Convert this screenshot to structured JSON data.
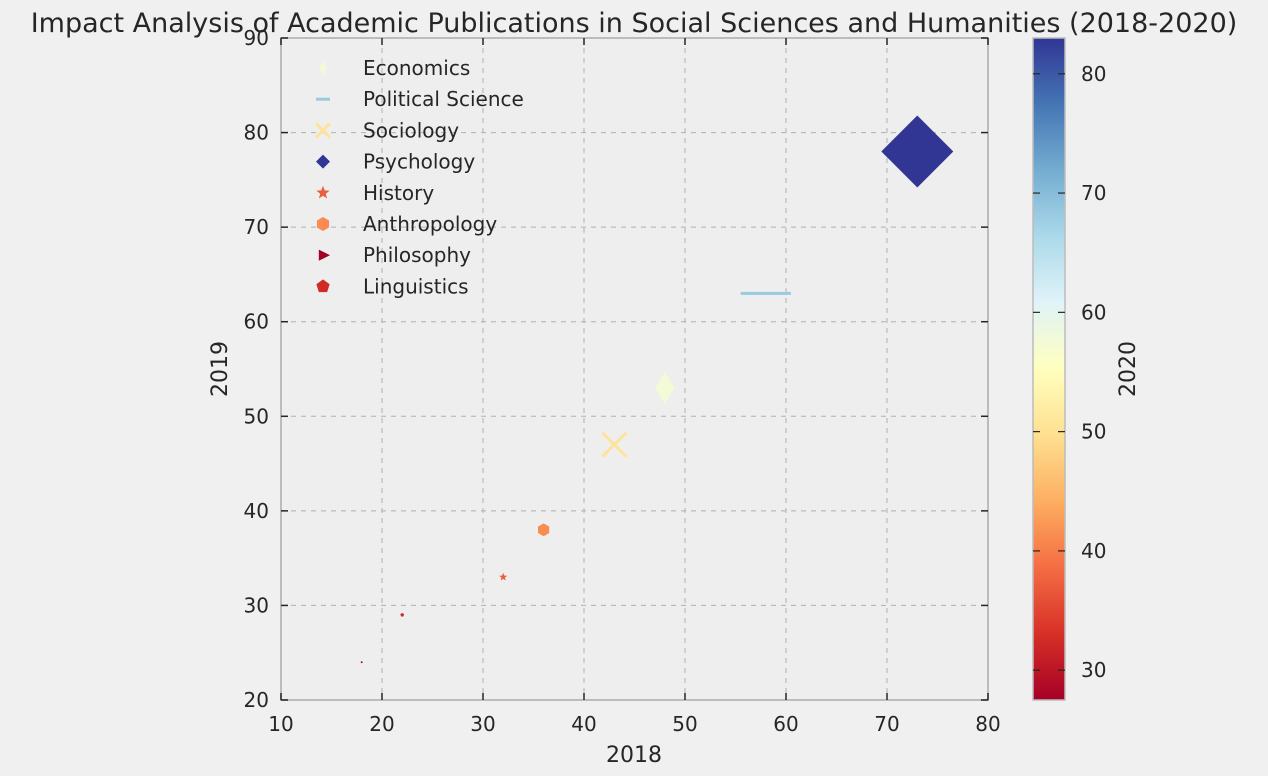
{
  "chart_data": {
    "type": "scatter",
    "title": "Impact Analysis of Academic Publications in Social Sciences and Humanities (2018-2020)",
    "xlabel": "2018",
    "ylabel": "2019",
    "colorbar_label": "2020",
    "xlim": [
      10,
      80
    ],
    "ylim": [
      20,
      90
    ],
    "xticks": [
      10,
      20,
      30,
      40,
      50,
      60,
      70,
      80
    ],
    "yticks": [
      20,
      30,
      40,
      50,
      60,
      70,
      80,
      90
    ],
    "colorbar_range": [
      27.5,
      83
    ],
    "colorbar_ticks": [
      30,
      40,
      50,
      60,
      70,
      80
    ],
    "colormap": "RdYlBu",
    "grid": true,
    "legend_position": "upper-left",
    "series": [
      {
        "name": "Economics",
        "x": 48,
        "y": 53,
        "z": 58,
        "marker": "thin-diamond",
        "color": "#f2fad7"
      },
      {
        "name": "Political Science",
        "x": 58,
        "y": 63,
        "z": 70,
        "marker": "hline",
        "color": "#98cae0"
      },
      {
        "name": "Sociology",
        "x": 43,
        "y": 47,
        "z": 52,
        "marker": "x",
        "color": "#fee49a"
      },
      {
        "name": "Psychology",
        "x": 73,
        "y": 78,
        "z": 83,
        "marker": "diamond",
        "color": "#313695"
      },
      {
        "name": "History",
        "x": 32,
        "y": 33,
        "z": 39,
        "marker": "star",
        "color": "#ea5e3d"
      },
      {
        "name": "Anthropology",
        "x": 36,
        "y": 38,
        "z": 43,
        "marker": "hexagon",
        "color": "#f88c51"
      },
      {
        "name": "Philosophy",
        "x": 18,
        "y": 24,
        "z": 27.5,
        "marker": "triangle-right",
        "color": "#a50026"
      },
      {
        "name": "Linguistics",
        "x": 22,
        "y": 29,
        "z": 34,
        "marker": "pentagon",
        "color": "#d12b26"
      }
    ]
  }
}
